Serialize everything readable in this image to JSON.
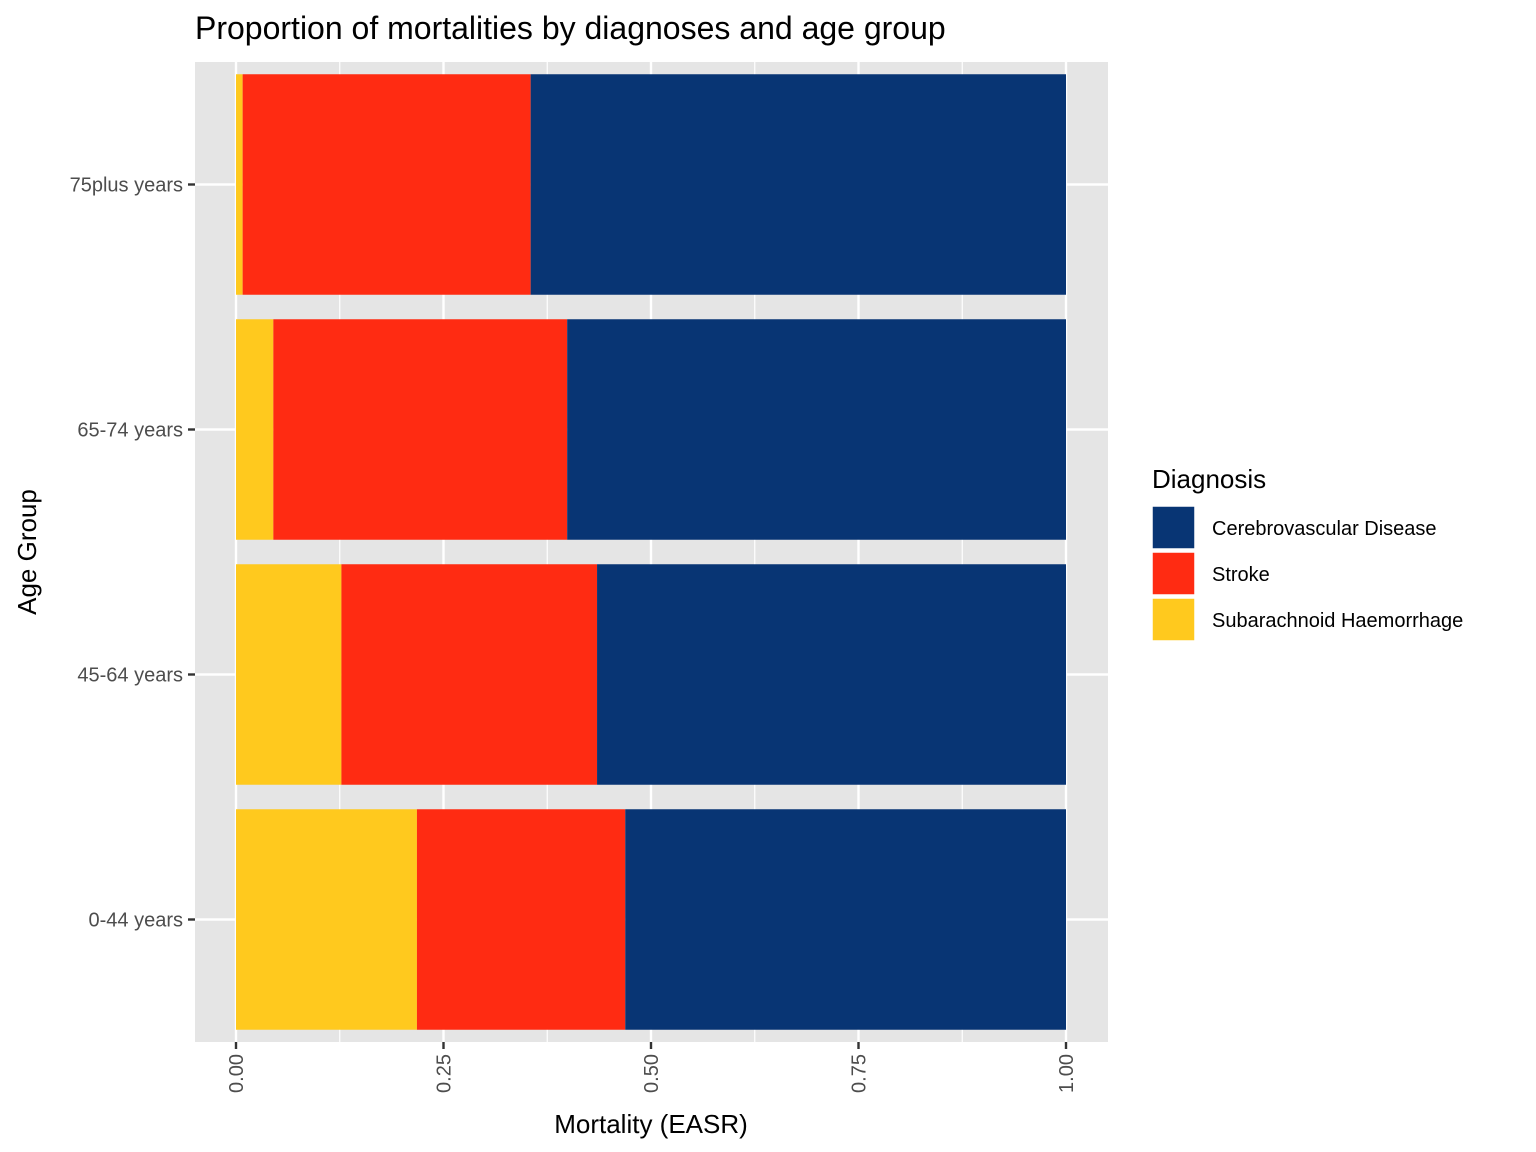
{
  "chart_data": {
    "type": "bar",
    "orientation": "horizontal",
    "stacked": true,
    "title": "Proportion of mortalities by diagnoses and age group",
    "xlabel": "Mortality (EASR)",
    "ylabel": "Age Group",
    "xlim": [
      0,
      1
    ],
    "x_ticks": [
      "0.00",
      "0.25",
      "0.50",
      "0.75",
      "1.00"
    ],
    "categories": [
      "75plus years",
      "65-74 years",
      "45-64 years",
      "0-44 years"
    ],
    "series": [
      {
        "name": "Subarachnoid Haemorrhage",
        "color": "#FFC91E",
        "values": [
          0.008,
          0.045,
          0.127,
          0.218
        ]
      },
      {
        "name": "Stroke",
        "color": "#FF2B12",
        "values": [
          0.347,
          0.354,
          0.308,
          0.251
        ]
      },
      {
        "name": "Cerebrovascular Disease",
        "color": "#083574",
        "values": [
          0.645,
          0.601,
          0.565,
          0.531
        ]
      }
    ],
    "legend": {
      "title": "Diagnosis",
      "position": "right",
      "order": [
        "Cerebrovascular Disease",
        "Stroke",
        "Subarachnoid Haemorrhage"
      ]
    },
    "grid": true,
    "panel_background": "#E5E5E5"
  }
}
